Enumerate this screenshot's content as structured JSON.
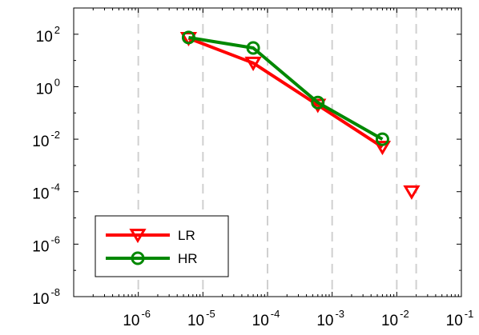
{
  "chart_data": {
    "type": "line",
    "title": "",
    "xlabel": "",
    "ylabel": "",
    "xscale": "log",
    "yscale": "log",
    "xlim": [
      1e-07,
      0.1
    ],
    "ylim": [
      1e-08,
      1000.0
    ],
    "grid": "off",
    "legend_position": "bottom-left",
    "x_tick_labels": [
      {
        "base": "10",
        "exp": "-6"
      },
      {
        "base": "10",
        "exp": "-5"
      },
      {
        "base": "10",
        "exp": "-4"
      },
      {
        "base": "10",
        "exp": "-3"
      },
      {
        "base": "10",
        "exp": "-2"
      },
      {
        "base": "10",
        "exp": "-1"
      }
    ],
    "y_tick_labels": [
      {
        "base": "10",
        "exp": "2"
      },
      {
        "base": "10",
        "exp": "0"
      },
      {
        "base": "10",
        "exp": "-2"
      },
      {
        "base": "10",
        "exp": "-4"
      },
      {
        "base": "10",
        "exp": "-6"
      },
      {
        "base": "10",
        "exp": "-8"
      }
    ],
    "reference_lines_x": [
      1e-06,
      1e-05,
      0.0001,
      0.001,
      0.01,
      0.02
    ],
    "series": [
      {
        "name": "LR",
        "color": "#ff0000",
        "marker": "triangle-down",
        "line_points": [
          {
            "x": 6e-06,
            "y": 70
          },
          {
            "x": 6e-05,
            "y": 8
          },
          {
            "x": 0.0006,
            "y": 0.2
          },
          {
            "x": 0.006,
            "y": 0.005
          }
        ],
        "extra_points": [
          {
            "x": 0.017,
            "y": 0.0001
          }
        ]
      },
      {
        "name": "HR",
        "color": "#008800",
        "marker": "circle",
        "line_points": [
          {
            "x": 6e-06,
            "y": 75
          },
          {
            "x": 6e-05,
            "y": 30
          },
          {
            "x": 0.0006,
            "y": 0.25
          },
          {
            "x": 0.006,
            "y": 0.01
          }
        ],
        "extra_points": []
      }
    ]
  }
}
